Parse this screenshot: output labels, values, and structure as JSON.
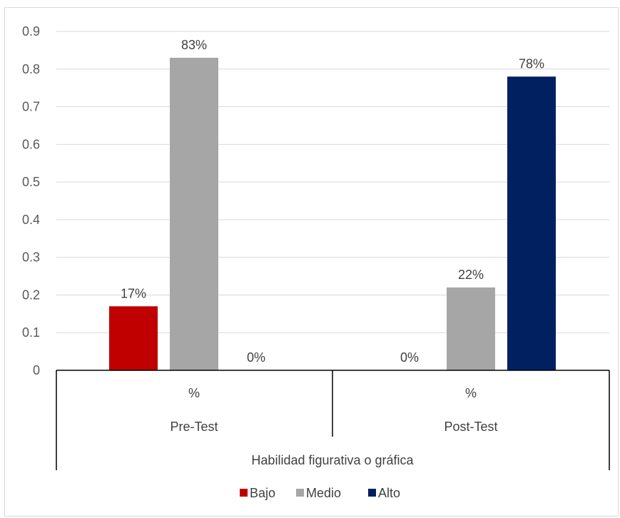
{
  "chart_data": {
    "type": "bar",
    "ylim": [
      0,
      0.9
    ],
    "yticks": [
      "0",
      "0.1",
      "0.2",
      "0.3",
      "0.4",
      "0.5",
      "0.6",
      "0.7",
      "0.8",
      "0.9"
    ],
    "grid": true,
    "legend_position": "bottom",
    "groups": [
      {
        "sub_label": "%",
        "label": "Pre-Test"
      },
      {
        "sub_label": "%",
        "label": "Post-Test"
      }
    ],
    "group_axis_title": "Habilidad figurativa o gráfica",
    "series": [
      {
        "name": "Bajo",
        "color": "#c00000",
        "values": [
          0.17,
          0.0
        ],
        "data_labels": [
          "17%",
          "0%"
        ]
      },
      {
        "name": "Medio",
        "color": "#a6a6a6",
        "values": [
          0.83,
          0.22
        ],
        "data_labels": [
          "83%",
          "22%"
        ]
      },
      {
        "name": "Alto",
        "color": "#002060",
        "values": [
          0.0,
          0.78
        ],
        "data_labels": [
          "0%",
          "78%"
        ]
      }
    ]
  }
}
